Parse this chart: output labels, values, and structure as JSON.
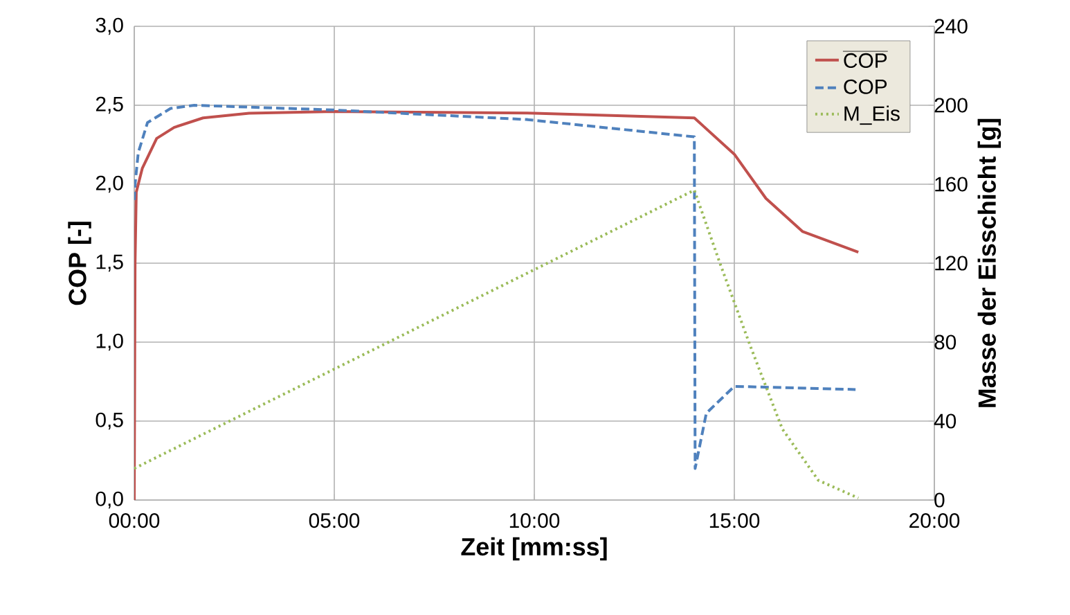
{
  "chart_data": {
    "type": "line",
    "xlabel": "Zeit [mm:ss]",
    "ylabel": "COP [-]",
    "y2label": "Masse der Eisschicht [g]",
    "xlim": [
      0,
      20
    ],
    "xticks": [
      {
        "value": 0,
        "label": "00:00"
      },
      {
        "value": 5,
        "label": "05:00"
      },
      {
        "value": 10,
        "label": "10:00"
      },
      {
        "value": 15,
        "label": "15:00"
      },
      {
        "value": 20,
        "label": "20:00"
      }
    ],
    "ylim": [
      0,
      3
    ],
    "yticks": [
      {
        "value": 0,
        "label": "0,0"
      },
      {
        "value": 0.5,
        "label": "0,5"
      },
      {
        "value": 1,
        "label": "1,0"
      },
      {
        "value": 1.5,
        "label": "1,5"
      },
      {
        "value": 2,
        "label": "2,0"
      },
      {
        "value": 2.5,
        "label": "2,5"
      },
      {
        "value": 3,
        "label": "3,0"
      }
    ],
    "y2lim": [
      0,
      240
    ],
    "y2ticks": [
      0,
      40,
      80,
      120,
      160,
      200,
      240
    ],
    "grid": true,
    "legend": "top right",
    "marker": "none",
    "series": [
      {
        "name": "\\overline{\\mathrm{COP}}",
        "color": "#c0504d",
        "line_style": "solid",
        "x": [
          0,
          0.02,
          0.05,
          0.2,
          0.56,
          1,
          1.72,
          2.87,
          5,
          10,
          14,
          15,
          15.79,
          16.71,
          18.1
        ],
        "values": [
          0,
          1.5,
          1.95,
          2.1,
          2.29,
          2.36,
          2.42,
          2.45,
          2.46,
          2.45,
          2.42,
          2.19,
          1.91,
          1.7,
          1.57
        ]
      },
      {
        "name": "COP",
        "color": "#4f81bd",
        "line_style": "dashed",
        "x": [
          0,
          0.02,
          0.1,
          0.33,
          0.91,
          1.5,
          5,
          9.8,
          14,
          14.02,
          14.1,
          14.3,
          15,
          18.03
        ],
        "values": [
          1.9,
          2.0,
          2.2,
          2.39,
          2.48,
          2.5,
          2.47,
          2.41,
          2.3,
          0.2,
          0.3,
          0.55,
          0.72,
          0.7
        ]
      },
      {
        "name": "M_Eis",
        "color": "#9bbb59",
        "line_style": "dotted",
        "axis": "y2",
        "x": [
          0,
          14,
          14.64,
          15.4,
          16.2,
          17.1,
          18.1
        ],
        "values": [
          16,
          157,
          120,
          78,
          36,
          10,
          1
        ]
      }
    ]
  }
}
